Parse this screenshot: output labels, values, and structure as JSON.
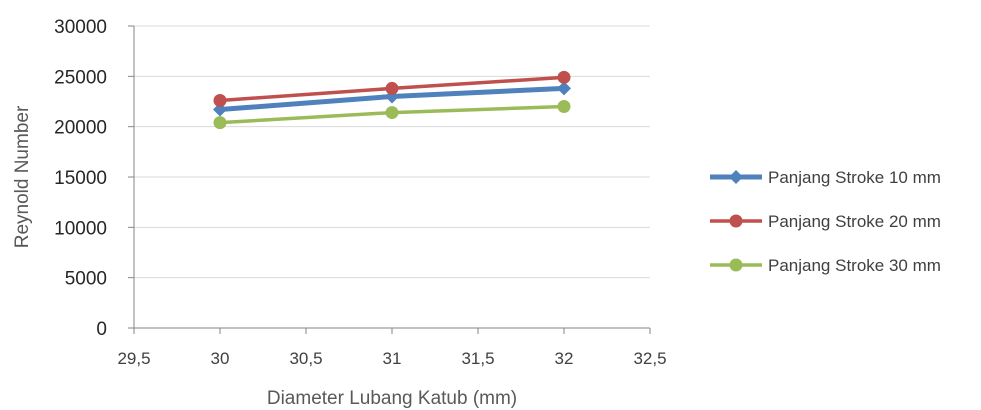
{
  "chart_data": {
    "type": "line",
    "title": "",
    "xlabel": "Diameter Lubang Katub (mm)",
    "ylabel": "Reynold Number",
    "xlim": [
      29.5,
      32.5
    ],
    "ylim": [
      0,
      30000
    ],
    "x_ticks": [
      "29,5",
      "30",
      "30,5",
      "31",
      "31,5",
      "32",
      "32,5"
    ],
    "y_ticks": [
      "0",
      "5000",
      "10000",
      "15000",
      "20000",
      "25000",
      "30000"
    ],
    "grid": "horizontal",
    "legend_position": "right",
    "x": [
      30,
      31,
      32
    ],
    "series": [
      {
        "name": "Panjang Stroke 10 mm",
        "values": [
          21700,
          23000,
          23800
        ],
        "color": "#4f81bd",
        "marker": "diamond"
      },
      {
        "name": "Panjang Stroke 20 mm",
        "values": [
          22600,
          23800,
          24900
        ],
        "color": "#c0504d",
        "marker": "circle"
      },
      {
        "name": "Panjang Stroke 30 mm",
        "values": [
          20400,
          21400,
          22000
        ],
        "color": "#9bbb59",
        "marker": "circle"
      }
    ]
  }
}
